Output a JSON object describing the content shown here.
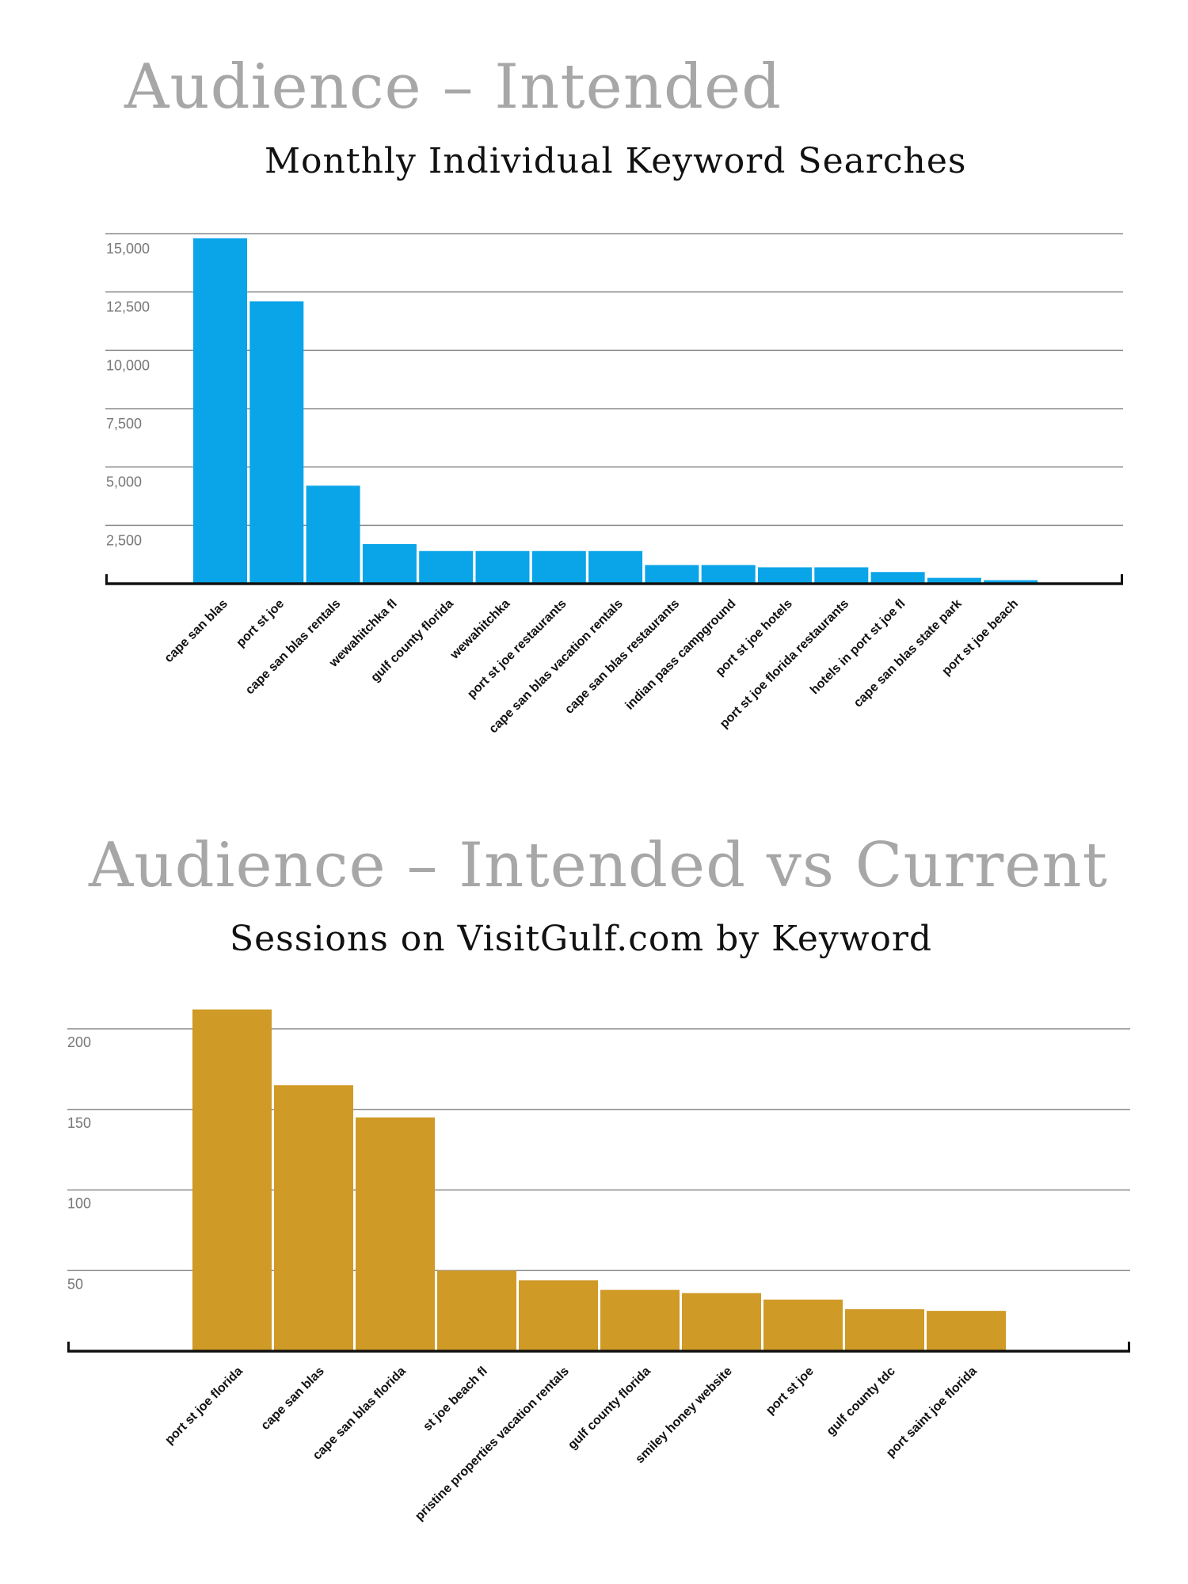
{
  "page": {
    "title1": "Audience – Intended",
    "title2": "Audience – Intended vs Current"
  },
  "colors": {
    "bar1": "#0aa4e8",
    "bar2": "#cf9a26",
    "grid": "#8a8a8a",
    "axis": "#111111"
  },
  "chart_data": [
    {
      "type": "bar",
      "title": "Monthly Individual Keyword Searches",
      "xlabel": "",
      "ylabel": "",
      "ylim": [
        0,
        15000
      ],
      "yticks": [
        {
          "value": 2500,
          "label": "2,500"
        },
        {
          "value": 5000,
          "label": "5,000"
        },
        {
          "value": 7500,
          "label": "7,500"
        },
        {
          "value": 10000,
          "label": "10,000"
        },
        {
          "value": 12500,
          "label": "12,500"
        },
        {
          "value": 15000,
          "label": "15,000"
        }
      ],
      "grid": true,
      "categories": [
        "cape san blas",
        "port st joe",
        "cape san blas rentals",
        "wewahitchka fl",
        "gulf county florida",
        "wewahitchka",
        "port st joe restaurants",
        "cape san blas vacation rentals",
        "cape san blas restaurants",
        "indian pass campground",
        "port st joe hotels",
        "port st joe florida restaurants",
        "hotels in port st joe fl",
        "cape san blas state park",
        "port st joe beach"
      ],
      "values": [
        14800,
        12100,
        4200,
        1700,
        1400,
        1400,
        1400,
        1400,
        800,
        800,
        700,
        700,
        500,
        250,
        150
      ]
    },
    {
      "type": "bar",
      "title": "Sessions on VisitGulf.com by Keyword",
      "xlabel": "",
      "ylabel": "",
      "ylim": [
        0,
        200
      ],
      "yticks": [
        {
          "value": 50,
          "label": "50"
        },
        {
          "value": 100,
          "label": "100"
        },
        {
          "value": 150,
          "label": "150"
        },
        {
          "value": 200,
          "label": "200"
        }
      ],
      "grid": true,
      "categories": [
        "port st joe florida",
        "cape san blas",
        "cape san blas florida",
        "st joe beach fl",
        "pristine properties vacation rentals",
        "gulf county florida",
        "smiley honey website",
        "port st joe",
        "gulf county tdc",
        "port saint joe florida"
      ],
      "values": [
        212,
        165,
        145,
        50,
        44,
        38,
        36,
        32,
        26,
        25
      ]
    }
  ]
}
